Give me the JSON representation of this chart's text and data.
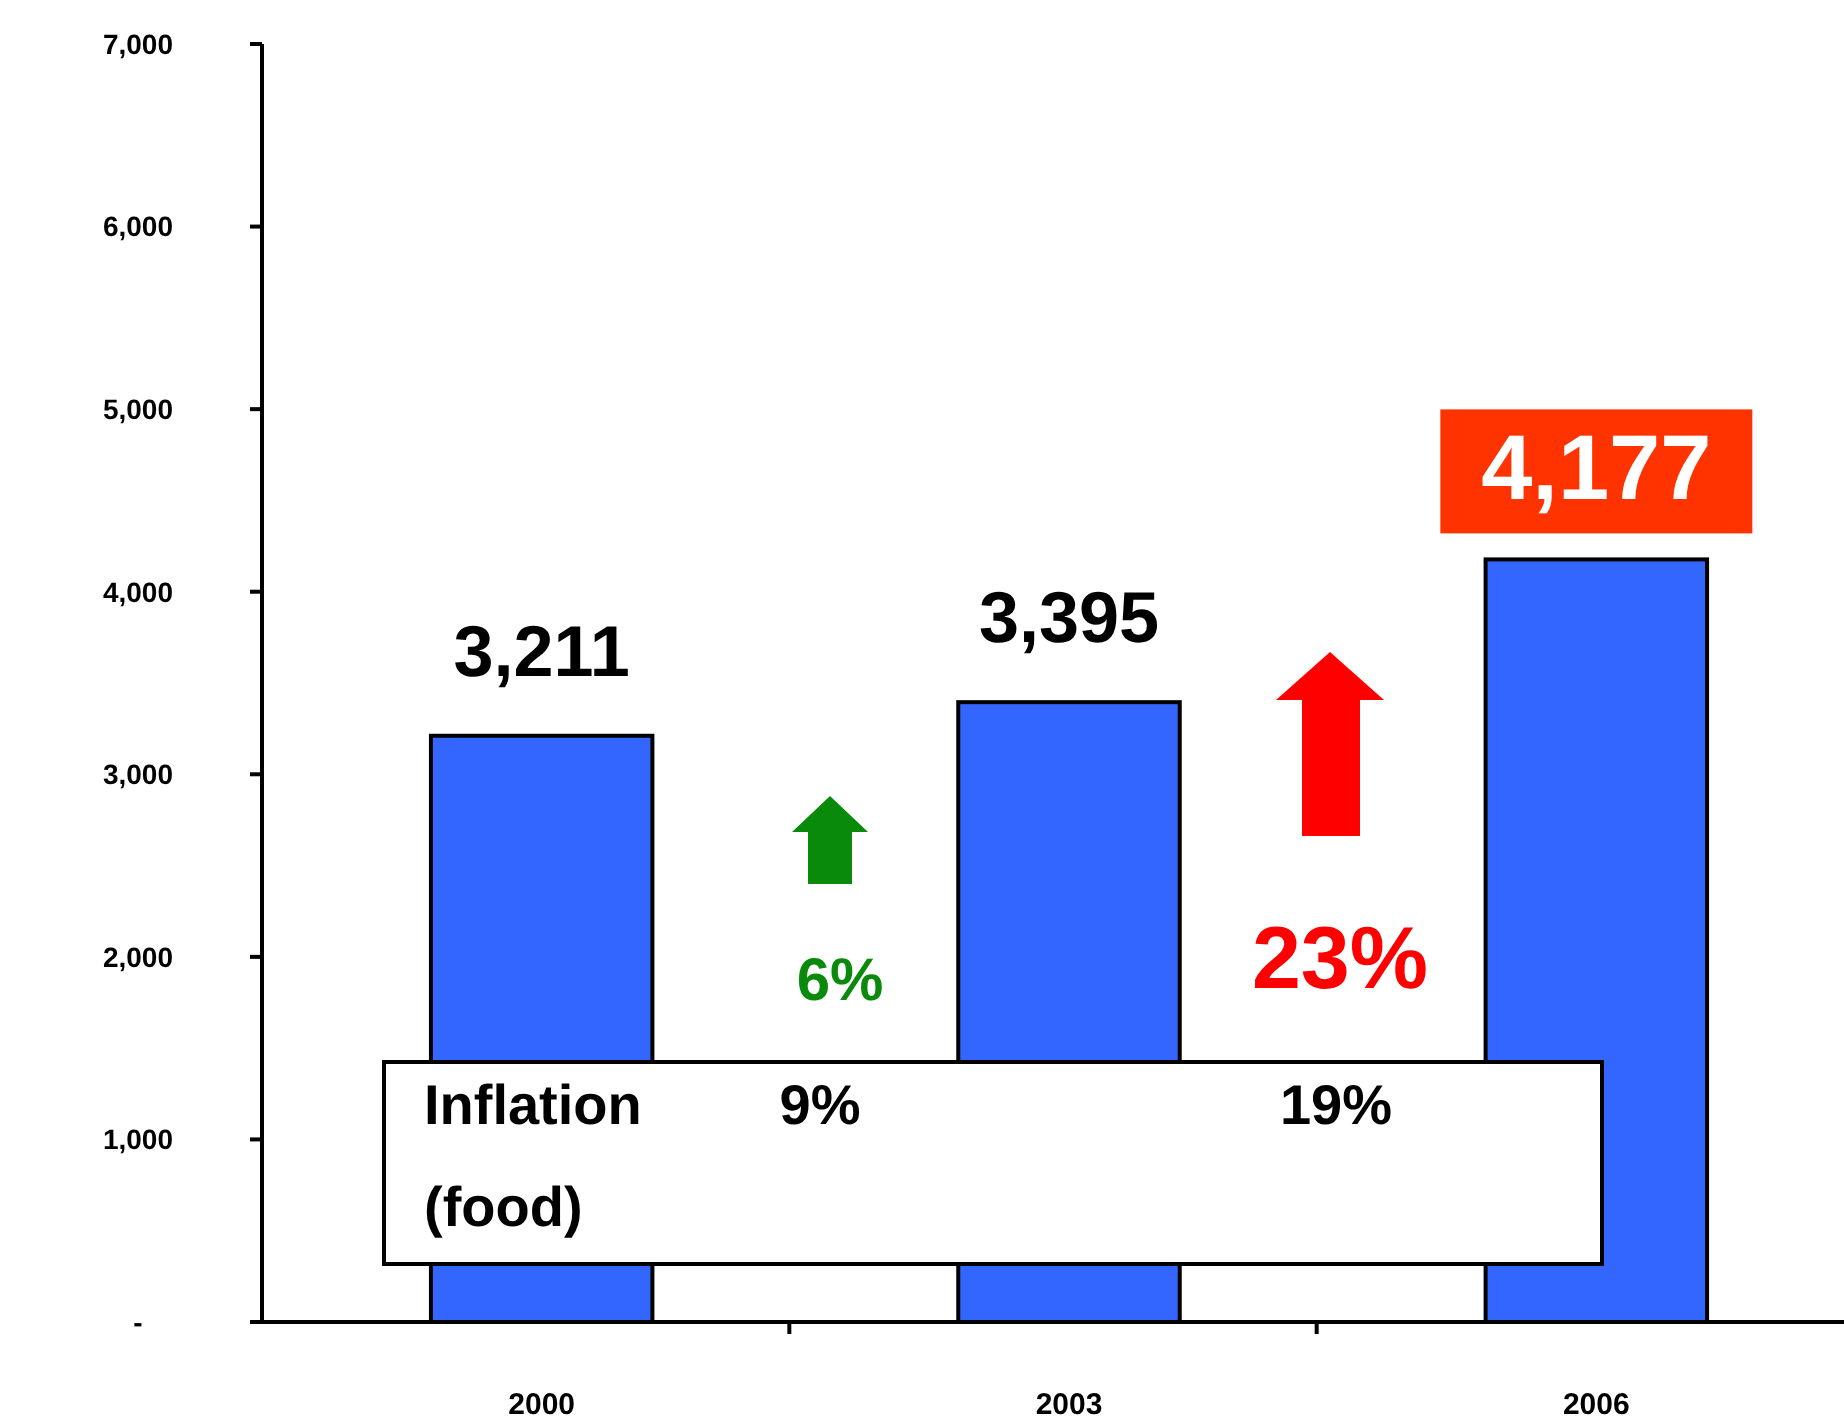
{
  "chart_data": {
    "type": "bar",
    "categories": [
      "2000",
      "2003",
      "2006"
    ],
    "values": [
      3211,
      3395,
      4177
    ],
    "value_labels": [
      "3,211",
      "3,395",
      "4,177"
    ],
    "color": "#3366ff",
    "ylim": [
      0,
      7000
    ],
    "yticks": [
      {
        "value": 0,
        "label": "-"
      },
      {
        "value": 1000,
        "label": "1,000"
      },
      {
        "value": 2000,
        "label": "2,000"
      },
      {
        "value": 3000,
        "label": "3,000"
      },
      {
        "value": 4000,
        "label": "4,000"
      },
      {
        "value": 5000,
        "label": "5,000"
      },
      {
        "value": 6000,
        "label": "6,000"
      },
      {
        "value": 7000,
        "label": "7,000"
      }
    ],
    "annotations": [
      "6%",
      "23%",
      "Inflation (food)",
      "9%",
      "19%"
    ]
  }
}
